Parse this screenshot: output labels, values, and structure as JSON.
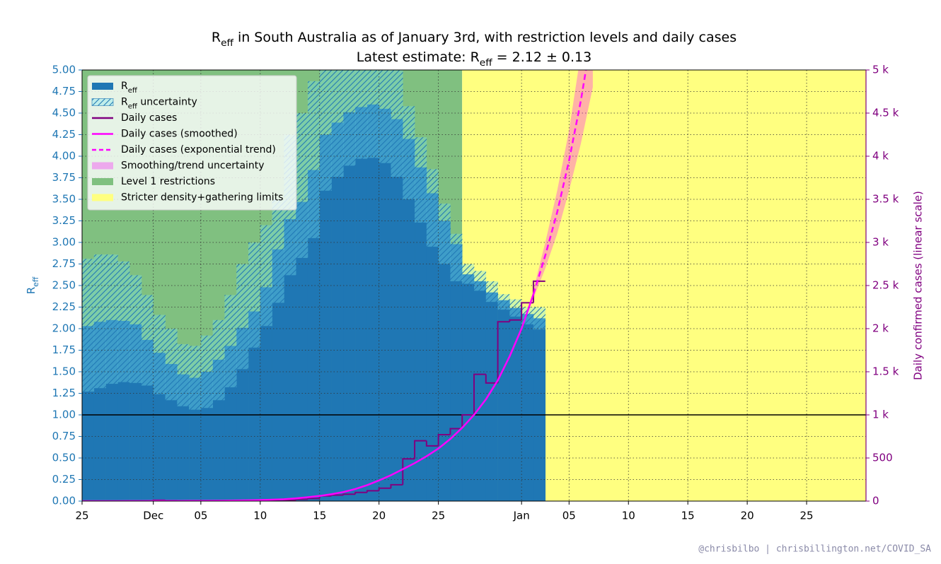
{
  "chart_data": {
    "type": "line",
    "title": [
      "R",
      {
        "sub": "eff"
      },
      " in South Australia as of January 3rd, with restriction levels and daily cases"
    ],
    "subtitle": [
      "Latest estimate: ",
      "R",
      {
        "sub": "eff"
      },
      " = 2.12 ± 0.13"
    ],
    "ylabel": [
      "R",
      {
        "sub": "eff"
      }
    ],
    "y2label": "Daily confirmed cases (linear scale)",
    "footer": "@chrisbilbo | chrisbillington.net/COVID_SA",
    "xlim": [
      0,
      66
    ],
    "xticks": [
      {
        "value": 0,
        "label": "25"
      },
      {
        "value": 6,
        "label": "Dec"
      },
      {
        "value": 10,
        "label": "05"
      },
      {
        "value": 15,
        "label": "10"
      },
      {
        "value": 20,
        "label": "15"
      },
      {
        "value": 25,
        "label": "20"
      },
      {
        "value": 30,
        "label": "25"
      },
      {
        "value": 37,
        "label": "Jan"
      },
      {
        "value": 41,
        "label": "05"
      },
      {
        "value": 46,
        "label": "10"
      },
      {
        "value": 51,
        "label": "15"
      },
      {
        "value": 56,
        "label": "20"
      },
      {
        "value": 61,
        "label": "25"
      }
    ],
    "ylim": [
      0,
      5
    ],
    "yticks": [
      {
        "value": 0,
        "label": "0.00"
      },
      {
        "value": 0.25,
        "label": "0.25"
      },
      {
        "value": 0.5,
        "label": "0.50"
      },
      {
        "value": 0.75,
        "label": "0.75"
      },
      {
        "value": 1,
        "label": "1.00"
      },
      {
        "value": 1.25,
        "label": "1.25"
      },
      {
        "value": 1.5,
        "label": "1.50"
      },
      {
        "value": 1.75,
        "label": "1.75"
      },
      {
        "value": 2,
        "label": "2.00"
      },
      {
        "value": 2.25,
        "label": "2.25"
      },
      {
        "value": 2.5,
        "label": "2.50"
      },
      {
        "value": 2.75,
        "label": "2.75"
      },
      {
        "value": 3,
        "label": "3.00"
      },
      {
        "value": 3.25,
        "label": "3.25"
      },
      {
        "value": 3.5,
        "label": "3.50"
      },
      {
        "value": 3.75,
        "label": "3.75"
      },
      {
        "value": 4,
        "label": "4.00"
      },
      {
        "value": 4.25,
        "label": "4.25"
      },
      {
        "value": 4.5,
        "label": "4.50"
      },
      {
        "value": 4.75,
        "label": "4.75"
      },
      {
        "value": 5,
        "label": "5.00"
      }
    ],
    "y2lim": [
      0,
      5000
    ],
    "y2ticks": [
      0,
      500,
      {
        "value": 1000,
        "label": "1 k"
      },
      {
        "value": 1500,
        "label": "1.5 k"
      },
      {
        "value": 2000,
        "label": "2 k"
      },
      {
        "value": 2500,
        "label": "2.5 k"
      },
      {
        "value": 3000,
        "label": "3 k"
      },
      {
        "value": 3500,
        "label": "3.5 k"
      },
      {
        "value": 4000,
        "label": "4 k"
      },
      {
        "value": 4500,
        "label": "4.5 k"
      },
      {
        "value": 5000,
        "label": "5 k"
      }
    ],
    "y_color": "#1f77b4",
    "y2_color": "#800080",
    "grid": true,
    "legend": "upper left",
    "reference_line": 1,
    "series": [
      {
        "name": [
          "R",
          {
            "sub": "eff"
          }
        ],
        "kind": "bars",
        "color": "#1f77b4",
        "x": [
          0,
          1,
          2,
          3,
          4,
          5,
          6,
          7,
          8,
          9,
          10,
          11,
          12,
          13,
          14,
          15,
          16,
          17,
          18,
          19,
          20,
          21,
          22,
          23,
          24,
          25,
          26,
          27,
          28,
          29,
          30,
          31,
          32,
          33,
          34,
          35,
          36,
          37,
          38
        ],
        "values": [
          2.03,
          2.08,
          2.1,
          2.09,
          2.05,
          1.87,
          1.72,
          1.59,
          1.47,
          1.43,
          1.5,
          1.64,
          1.8,
          2.01,
          2.2,
          2.48,
          2.92,
          3.27,
          3.47,
          3.84,
          4.25,
          4.39,
          4.51,
          4.57,
          4.6,
          4.55,
          4.43,
          4.2,
          3.87,
          3.57,
          3.25,
          2.98,
          2.63,
          2.55,
          2.42,
          2.33,
          2.24,
          2.17,
          2.12
        ]
      },
      {
        "name": [
          "R",
          {
            "sub": "eff"
          },
          " uncertainty"
        ],
        "kind": "hatched-band",
        "color": "#1f77b4",
        "x": [
          0,
          1,
          2,
          3,
          4,
          5,
          6,
          7,
          8,
          9,
          10,
          11,
          12,
          13,
          14,
          15,
          16,
          17,
          18,
          19,
          20,
          21,
          22,
          23,
          24,
          25,
          26,
          27,
          28,
          29,
          30,
          31,
          32,
          33,
          34,
          35,
          36,
          37,
          38
        ],
        "lower": [
          1.27,
          1.31,
          1.36,
          1.38,
          1.37,
          1.34,
          1.24,
          1.17,
          1.1,
          1.06,
          1.08,
          1.17,
          1.32,
          1.53,
          1.78,
          2.03,
          2.3,
          2.62,
          2.82,
          3.05,
          3.6,
          3.76,
          3.89,
          3.97,
          3.98,
          3.92,
          3.76,
          3.5,
          3.23,
          2.95,
          2.75,
          2.55,
          2.52,
          2.44,
          2.31,
          2.22,
          2.14,
          2.05,
          1.99
        ],
        "upper": [
          2.81,
          2.86,
          2.86,
          2.78,
          2.62,
          2.39,
          2.16,
          2.0,
          1.82,
          1.8,
          1.92,
          2.1,
          2.39,
          2.75,
          3.0,
          3.2,
          3.5,
          4.25,
          4.5,
          4.87,
          5.0,
          5.1,
          5.2,
          5.25,
          5.25,
          5.15,
          5.0,
          4.58,
          4.22,
          3.85,
          3.45,
          3.1,
          2.75,
          2.67,
          2.55,
          2.4,
          2.34,
          2.25,
          2.25
        ]
      },
      {
        "name": "Daily cases",
        "kind": "step",
        "axis": "y2",
        "color": "#800080",
        "x": [
          0,
          1,
          2,
          3,
          4,
          5,
          6,
          7,
          8,
          9,
          10,
          11,
          12,
          13,
          14,
          15,
          16,
          17,
          18,
          19,
          20,
          21,
          22,
          23,
          24,
          25,
          26,
          27,
          28,
          29,
          30,
          31,
          32,
          33,
          34,
          35,
          36,
          37,
          38
        ],
        "values": [
          0,
          0,
          0,
          0,
          0,
          0,
          10,
          5,
          0,
          0,
          0,
          0,
          0,
          0,
          0,
          0,
          0,
          10,
          20,
          30,
          60,
          70,
          80,
          100,
          120,
          150,
          190,
          490,
          700,
          640,
          770,
          840,
          1000,
          1470,
          1370,
          2080,
          2100,
          2300,
          2550
        ]
      },
      {
        "name": "Daily cases (smoothed)",
        "kind": "line",
        "axis": "y2",
        "color": "#ff00ff",
        "x": [
          0,
          1,
          2,
          3,
          4,
          5,
          6,
          7,
          8,
          9,
          10,
          11,
          12,
          13,
          14,
          15,
          16,
          17,
          18,
          19,
          20,
          21,
          22,
          23,
          24,
          25,
          26,
          27,
          28,
          29,
          30,
          31,
          32,
          33,
          34,
          35,
          36,
          37,
          38
        ],
        "values": [
          0,
          0,
          0,
          0,
          1,
          1,
          2,
          2,
          2,
          3,
          3,
          4,
          5,
          7,
          9,
          12,
          16,
          22,
          32,
          45,
          60,
          80,
          105,
          140,
          185,
          240,
          300,
          370,
          440,
          520,
          610,
          720,
          850,
          1000,
          1180,
          1400,
          1680,
          2000,
          2400
        ]
      },
      {
        "name": "Daily cases (exponential trend)",
        "kind": "dashed",
        "axis": "y2",
        "color": "#ff00ff",
        "x": [
          38,
          39,
          40,
          41,
          42,
          43
        ],
        "values": [
          2400,
          2850,
          3350,
          3950,
          4650,
          5480
        ]
      },
      {
        "name": "Smoothing/trend uncertainty",
        "kind": "band",
        "axis": "y2",
        "color": "#ff00ff",
        "x": [
          38,
          39,
          40,
          41,
          42,
          43
        ],
        "lower": [
          2350,
          2700,
          3100,
          3600,
          4150,
          4800
        ],
        "upper": [
          2450,
          3000,
          3600,
          4300,
          5200,
          6200
        ]
      }
    ],
    "regions": [
      {
        "name": "Level 1 restrictions",
        "color": "#80c080",
        "x": [
          0,
          32
        ]
      },
      {
        "name": "Stricter density+gathering limits",
        "color": "#ffff80",
        "x": [
          32,
          66
        ]
      }
    ]
  }
}
